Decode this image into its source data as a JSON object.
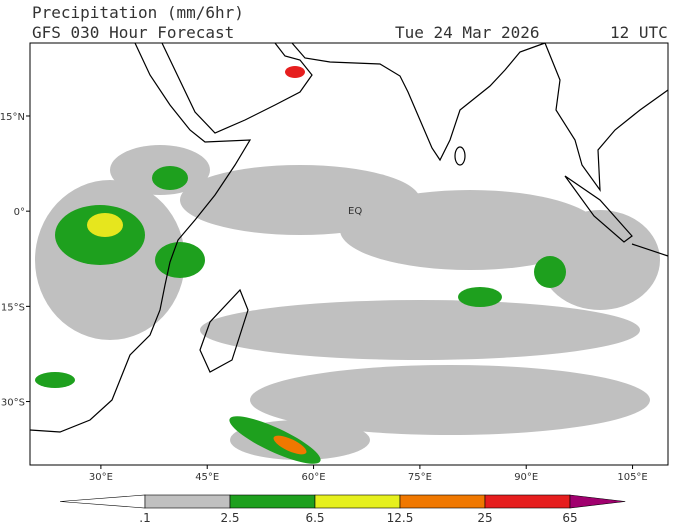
{
  "header": {
    "title": "Precipitation (mm/6hr)",
    "subtitle": "GFS 030 Hour Forecast",
    "date": "Tue 24 Mar 2026",
    "time": "12 UTC"
  },
  "map": {
    "lonlim": [
      20,
      110
    ],
    "latlim": [
      -40,
      26.5
    ],
    "lat_ticks": [
      {
        "value": 15,
        "label": "15°N"
      },
      {
        "value": 0,
        "label": "0°"
      },
      {
        "value": -15,
        "label": "15°S"
      },
      {
        "value": -30,
        "label": "30°S"
      }
    ],
    "lon_ticks": [
      {
        "value": 30,
        "label": "30°E"
      },
      {
        "value": 45,
        "label": "45°E"
      },
      {
        "value": 60,
        "label": "60°E"
      },
      {
        "value": 75,
        "label": "75°E"
      },
      {
        "value": 90,
        "label": "90°E"
      },
      {
        "value": 105,
        "label": "105°E"
      }
    ],
    "equator_label": "EQ"
  },
  "colorbar": {
    "levels": [
      {
        "value": 0.1,
        "label": ".1"
      },
      2.5,
      6.5,
      12.5,
      25,
      65
    ],
    "colors": [
      "#ffffff",
      "#c0c0c0",
      "#1ea01e",
      "#e6f01e",
      "#f07800",
      "#e61e1e",
      "#a0006e"
    ]
  }
}
